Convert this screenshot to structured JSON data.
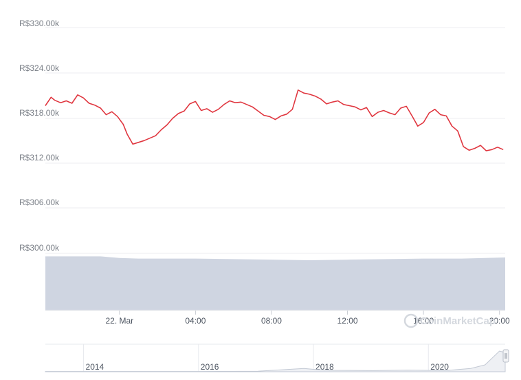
{
  "chart_data": {
    "type": "line",
    "currency_prefix": "R$",
    "y_ticks": [
      "R$330.00k",
      "R$324.00k",
      "R$318.00k",
      "R$312.00k",
      "R$306.00k",
      "R$300.00k"
    ],
    "y_tick_values": [
      330000,
      324000,
      318000,
      312000,
      306000,
      300000
    ],
    "ylim": [
      300000,
      330000
    ],
    "x_ticks": [
      "22. Mar",
      "04:00",
      "08:00",
      "12:00",
      "16:00",
      "20:00"
    ],
    "x_tick_hours": [
      0,
      4,
      8,
      12,
      16,
      20
    ],
    "xlim_hours": [
      -3.9,
      20.3
    ],
    "series": [
      {
        "color": "#e0363f",
        "x": [
          -3.9,
          -3.6,
          -3.4,
          -3.1,
          -2.8,
          -2.5,
          -2.2,
          -1.9,
          -1.6,
          -1.3,
          -1.0,
          -0.7,
          -0.4,
          -0.1,
          0.2,
          0.4,
          0.7,
          1.0,
          1.3,
          1.6,
          1.9,
          2.2,
          2.5,
          2.8,
          3.1,
          3.4,
          3.7,
          4.0,
          4.3,
          4.6,
          4.9,
          5.2,
          5.5,
          5.8,
          6.1,
          6.4,
          6.7,
          7.0,
          7.3,
          7.6,
          7.9,
          8.2,
          8.5,
          8.8,
          9.1,
          9.4,
          9.7,
          10.0,
          10.3,
          10.6,
          10.9,
          11.2,
          11.5,
          11.8,
          12.1,
          12.4,
          12.7,
          13.0,
          13.3,
          13.6,
          13.9,
          14.2,
          14.5,
          14.8,
          15.1,
          15.4,
          15.7,
          16.0,
          16.3,
          16.6,
          16.9,
          17.2,
          17.5,
          17.8,
          18.1,
          18.4,
          18.7,
          19.0,
          19.3,
          19.6,
          19.9,
          20.2
        ],
        "y": [
          317000,
          318400,
          317900,
          317500,
          317800,
          317400,
          318800,
          318300,
          317400,
          317100,
          316600,
          315500,
          316000,
          315200,
          313900,
          312300,
          310600,
          310900,
          311200,
          311600,
          312000,
          313000,
          313800,
          314900,
          315700,
          316100,
          317300,
          317700,
          316200,
          316500,
          315900,
          316400,
          317200,
          317800,
          317500,
          317600,
          317200,
          316800,
          316100,
          315400,
          315200,
          314700,
          315300,
          315600,
          316400,
          319600,
          319100,
          318900,
          318600,
          318100,
          317300,
          317600,
          317800,
          317200,
          317000,
          316800,
          316300,
          316700,
          315200,
          315900,
          316200,
          315800,
          315500,
          316600,
          316900,
          315300,
          313600,
          314200,
          315800,
          316400,
          315500,
          315300,
          313600,
          312800,
          310200,
          309600,
          309900,
          310400,
          309500,
          309700,
          310100,
          309700
        ]
      }
    ],
    "volume_area": {
      "x": [
        -3.9,
        -1.0,
        0.0,
        1.0,
        4.0,
        6.0,
        10.0,
        12.0,
        16.0,
        18.0,
        20.3
      ],
      "y_frac": [
        0.97,
        0.97,
        0.94,
        0.93,
        0.93,
        0.92,
        0.9,
        0.91,
        0.93,
        0.93,
        0.95
      ]
    },
    "watermark": "CoinMarketCap",
    "navigator": {
      "labels": [
        "2014",
        "2016",
        "2018",
        "2020"
      ],
      "label_years": [
        2014,
        2016,
        2018,
        2020
      ],
      "year_range": [
        2013.3,
        2021.3
      ],
      "x_years": [
        2013.3,
        2014,
        2015,
        2016,
        2017,
        2017.8,
        2018.0,
        2018.3,
        2019,
        2019.6,
        2020.0,
        2020.3,
        2020.7,
        2020.95,
        2021.2,
        2021.3
      ],
      "y_frac": [
        0.01,
        0.01,
        0.01,
        0.01,
        0.02,
        0.12,
        0.08,
        0.05,
        0.04,
        0.06,
        0.05,
        0.05,
        0.12,
        0.25,
        0.75,
        0.7
      ]
    }
  }
}
